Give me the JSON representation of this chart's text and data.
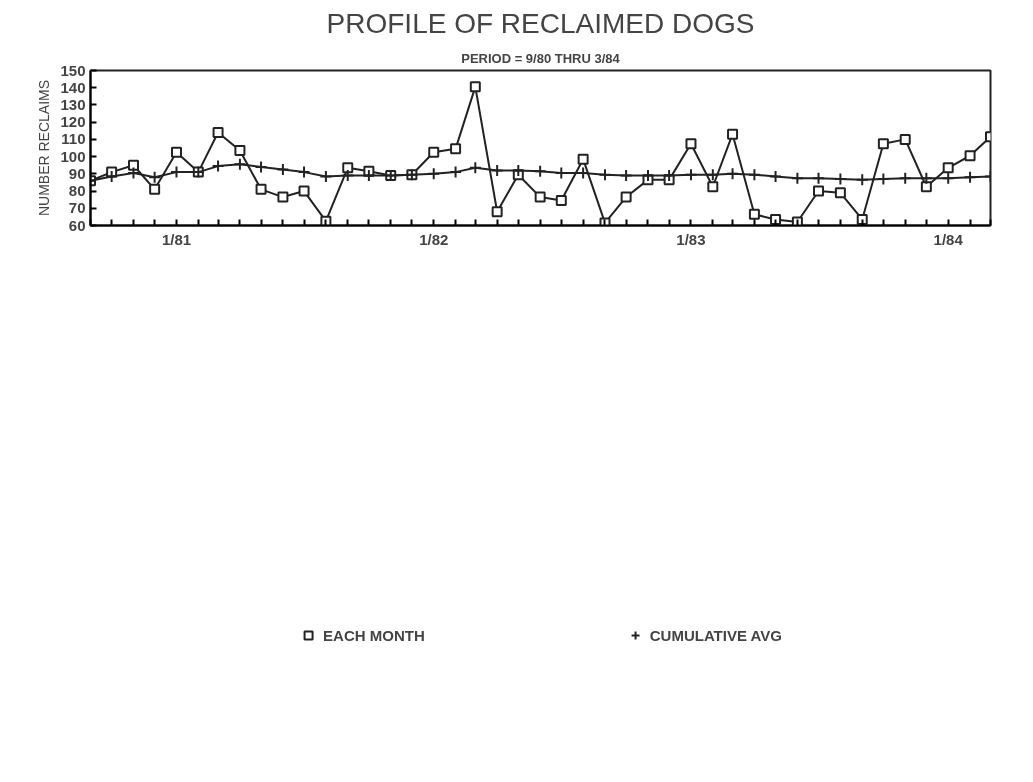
{
  "chart_data": {
    "type": "line",
    "title": "PROFILE OF RECLAIMED DOGS",
    "subtitle": "PERIOD = 9/80 THRU 3/84",
    "ylabel": "NUMBER RECLAIMS",
    "x": [
      "1980-09",
      "1980-10",
      "1980-11",
      "1980-12",
      "1981-01",
      "1981-02",
      "1981-03",
      "1981-04",
      "1981-05",
      "1981-06",
      "1981-07",
      "1981-08",
      "1981-09",
      "1981-10",
      "1981-11",
      "1981-12",
      "1982-01",
      "1982-02",
      "1982-03",
      "1982-04",
      "1982-05",
      "1982-06",
      "1982-07",
      "1982-08",
      "1982-09",
      "1982-10",
      "1982-11",
      "1982-12",
      "1983-01",
      "1983-02",
      "1983-03",
      "1983-04",
      "1983-05",
      "1983-06",
      "1983-07",
      "1983-08",
      "1983-09",
      "1983-10",
      "1983-11",
      "1983-12",
      "1984-01",
      "1984-02",
      "1984-03"
    ],
    "series": [
      {
        "name": "EACH MONTH",
        "color": "#222222",
        "marker": "square",
        "values": [
          86,
          91,
          95,
          81,
          102.5,
          91,
          114,
          103.5,
          81,
          76.5,
          80,
          62.5,
          93.5,
          91.5,
          89,
          89.5,
          102.5,
          104.5,
          140.5,
          68,
          89.5,
          76.5,
          74.5,
          98.5,
          61.5,
          76.5,
          86.5,
          86.5,
          107.5,
          82.5,
          113,
          66.5,
          63.5,
          62,
          80,
          79,
          63.5,
          107.5,
          110,
          82.5,
          93.5,
          100.5,
          111.5
        ]
      },
      {
        "name": "CUMULATIVE AVG",
        "color": "#222222",
        "marker": "cross",
        "values": [
          86,
          88.5,
          90.5,
          88,
          91,
          91,
          94.5,
          95.5,
          94,
          92.5,
          91,
          88.5,
          89,
          89,
          89,
          89.5,
          90,
          91,
          93.5,
          92,
          92,
          91.5,
          90.5,
          90.5,
          89.5,
          89,
          89,
          89,
          89.5,
          89.5,
          90,
          89.5,
          88.5,
          87.5,
          87.5,
          87,
          86.5,
          87,
          87.5,
          87.5,
          87.5,
          88,
          88.5
        ]
      }
    ],
    "xlim": [
      "1980-09",
      "1984-03"
    ],
    "xticks": [
      {
        "value": "1980-09",
        "label": null
      },
      {
        "value": "1980-10",
        "label": null
      },
      {
        "value": "1980-11",
        "label": null
      },
      {
        "value": "1980-12",
        "label": null
      },
      {
        "value": "1981-01",
        "label": "1/81"
      },
      {
        "value": "1981-02",
        "label": null
      },
      {
        "value": "1981-03",
        "label": null
      },
      {
        "value": "1981-04",
        "label": null
      },
      {
        "value": "1981-05",
        "label": null
      },
      {
        "value": "1981-06",
        "label": null
      },
      {
        "value": "1981-07",
        "label": null
      },
      {
        "value": "1981-08",
        "label": null
      },
      {
        "value": "1981-09",
        "label": null
      },
      {
        "value": "1981-10",
        "label": null
      },
      {
        "value": "1981-11",
        "label": null
      },
      {
        "value": "1981-12",
        "label": null
      },
      {
        "value": "1982-01",
        "label": "1/82"
      },
      {
        "value": "1982-02",
        "label": null
      },
      {
        "value": "1982-03",
        "label": null
      },
      {
        "value": "1982-04",
        "label": null
      },
      {
        "value": "1982-05",
        "label": null
      },
      {
        "value": "1982-06",
        "label": null
      },
      {
        "value": "1982-07",
        "label": null
      },
      {
        "value": "1982-08",
        "label": null
      },
      {
        "value": "1982-09",
        "label": null
      },
      {
        "value": "1982-10",
        "label": null
      },
      {
        "value": "1982-11",
        "label": null
      },
      {
        "value": "1982-12",
        "label": null
      },
      {
        "value": "1983-01",
        "label": "1/83"
      },
      {
        "value": "1983-02",
        "label": null
      },
      {
        "value": "1983-03",
        "label": null
      },
      {
        "value": "1983-04",
        "label": null
      },
      {
        "value": "1983-05",
        "label": null
      },
      {
        "value": "1983-06",
        "label": null
      },
      {
        "value": "1983-07",
        "label": null
      },
      {
        "value": "1983-08",
        "label": null
      },
      {
        "value": "1983-09",
        "label": null
      },
      {
        "value": "1983-10",
        "label": null
      },
      {
        "value": "1983-11",
        "label": null
      },
      {
        "value": "1983-12",
        "label": null
      },
      {
        "value": "1984-01",
        "label": "1/84"
      },
      {
        "value": "1984-02",
        "label": null
      },
      {
        "value": "1984-03",
        "label": null
      }
    ],
    "ylim": [
      60,
      150
    ],
    "yticks": [
      60,
      70,
      80,
      90,
      100,
      110,
      120,
      130,
      140,
      150
    ],
    "grid": false,
    "legend": "bottom",
    "line_style": "solid"
  }
}
